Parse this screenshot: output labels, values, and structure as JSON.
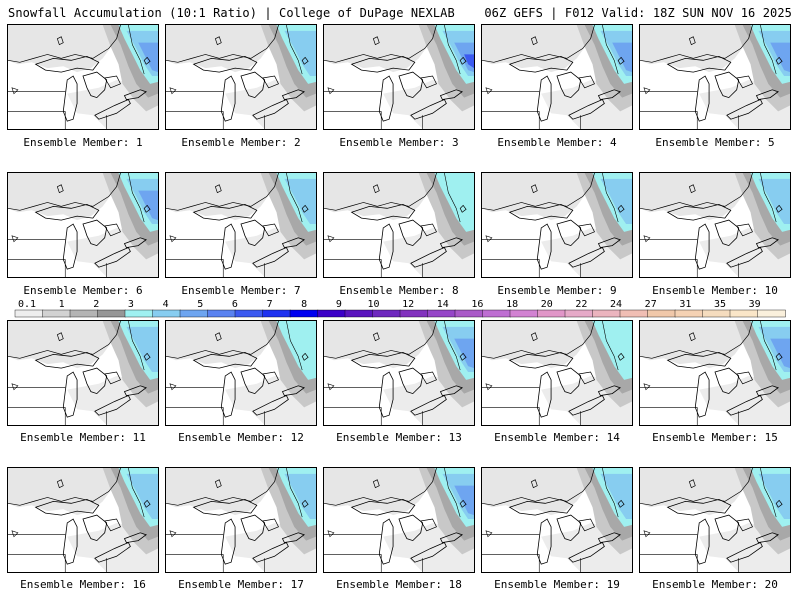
{
  "header": {
    "left": "Snowfall Accumulation (10:1 Ratio) | College of DuPage NEXLAB",
    "right": "06Z GEFS | F012 Valid: 18Z SUN NOV 16 2025"
  },
  "caption_prefix": "Ensemble Member: ",
  "members": [
    {
      "id": 1,
      "intensity": 3
    },
    {
      "id": 2,
      "intensity": 2
    },
    {
      "id": 3,
      "intensity": 4
    },
    {
      "id": 4,
      "intensity": 3
    },
    {
      "id": 5,
      "intensity": 3
    },
    {
      "id": 6,
      "intensity": 3
    },
    {
      "id": 7,
      "intensity": 2
    },
    {
      "id": 8,
      "intensity": 1
    },
    {
      "id": 9,
      "intensity": 2
    },
    {
      "id": 10,
      "intensity": 2
    },
    {
      "id": 11,
      "intensity": 2
    },
    {
      "id": 12,
      "intensity": 1
    },
    {
      "id": 13,
      "intensity": 3
    },
    {
      "id": 14,
      "intensity": 1
    },
    {
      "id": 15,
      "intensity": 3
    },
    {
      "id": 16,
      "intensity": 2
    },
    {
      "id": 17,
      "intensity": 2
    },
    {
      "id": 18,
      "intensity": 3
    },
    {
      "id": 19,
      "intensity": 2
    },
    {
      "id": 20,
      "intensity": 2
    }
  ],
  "colorbar": {
    "labels": [
      "0.1",
      "1",
      "2",
      "3",
      "4",
      "5",
      "6",
      "7",
      "8",
      "9",
      "10",
      "12",
      "14",
      "16",
      "18",
      "20",
      "22",
      "24",
      "27",
      "31",
      "35",
      "39"
    ],
    "colors": [
      "#eeeeee",
      "#d2d2d2",
      "#b4b4b4",
      "#969696",
      "#9ff0f0",
      "#87cdf0",
      "#6ea5f0",
      "#5a82f0",
      "#3c5af0",
      "#1e32f0",
      "#0000f0",
      "#3c00c8",
      "#5a14be",
      "#6e28be",
      "#8232be",
      "#9646c8",
      "#aa5ac8",
      "#be6ed2",
      "#d282d2",
      "#e196c8",
      "#e6aac8",
      "#ebb4be",
      "#f0beb4",
      "#f0c8aa",
      "#f5d2b4",
      "#f5dcbe",
      "#fae6c8",
      "#faf0dc"
    ]
  }
}
